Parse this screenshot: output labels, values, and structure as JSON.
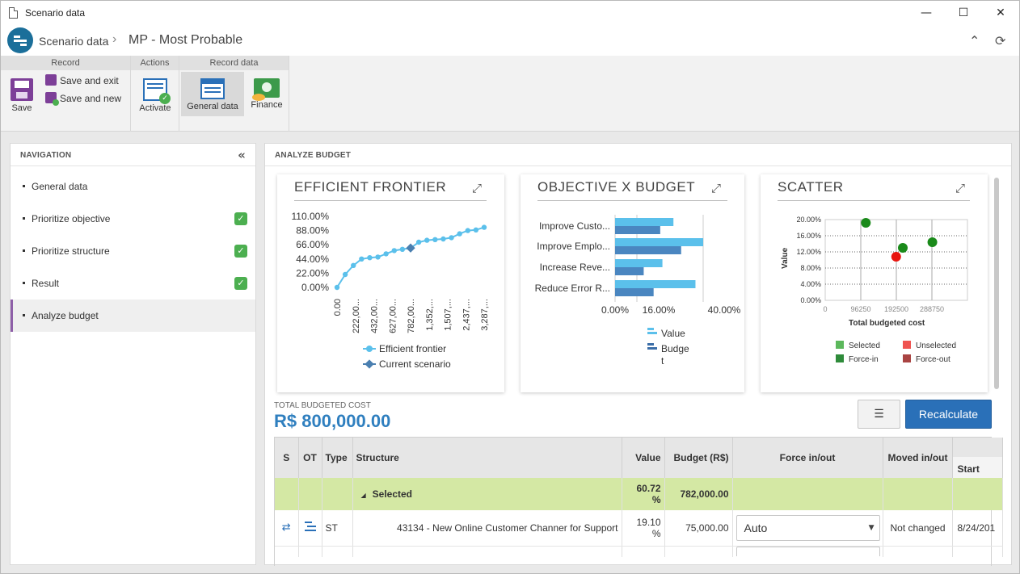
{
  "window": {
    "title": "Scenario data",
    "controls": [
      "—",
      "☐",
      "✕"
    ]
  },
  "header": {
    "breadcrumb_root": "Scenario data",
    "breadcrumb_sep": "›",
    "breadcrumb_current": "MP - Most Probable"
  },
  "ribbon": {
    "groups": {
      "record": "Record",
      "actions": "Actions",
      "record_data": "Record data"
    },
    "save": "Save",
    "save_and_exit": "Save and exit",
    "save_and_new": "Save and new",
    "activate": "Activate",
    "general_data": "General data",
    "finance": "Finance"
  },
  "navigation": {
    "title": "NAVIGATION",
    "items": [
      {
        "label": "General data",
        "checked": false
      },
      {
        "label": "Prioritize objective",
        "checked": true
      },
      {
        "label": "Prioritize structure",
        "checked": true
      },
      {
        "label": "Result",
        "checked": true
      },
      {
        "label": "Analyze budget",
        "checked": false,
        "active": true
      }
    ]
  },
  "main": {
    "title": "ANALYZE BUDGET",
    "total_label": "TOTAL BUDGETED COST",
    "total_value": "R$ 800,000.00",
    "recalculate": "Recalculate",
    "list_icon": "☰"
  },
  "colors": {
    "accent": "#2f7fbf",
    "frontier": "#5bc0eb",
    "current": "#4a7fb0",
    "selected_row": "#d4e8a4",
    "nav_active": "#8e5fa8",
    "check": "#4caf50"
  },
  "chart_data": [
    {
      "type": "line",
      "title": "EFFICIENT FRONTIER",
      "y_ticks": [
        "110.00%",
        "88.00%",
        "66.00%",
        "44.00%",
        "22.00%",
        "0.00%"
      ],
      "x_ticks": [
        "0.00",
        "222,00...",
        "432,00...",
        "627,00...",
        "782,00...",
        "1,352,...",
        "1,507,...",
        "2,437,...",
        "3,287,..."
      ],
      "ylim": [
        0,
        110
      ],
      "series": [
        {
          "name": "Efficient frontier",
          "values": [
            0,
            20,
            34,
            44,
            46,
            47,
            52,
            57,
            59,
            61,
            70,
            73,
            74,
            75,
            77,
            83,
            88,
            89,
            93
          ]
        },
        {
          "name": "Current scenario",
          "index": 9,
          "value": 61
        }
      ],
      "legend": [
        "Efficient frontier",
        "Current scenario"
      ]
    },
    {
      "type": "bar",
      "title": "OBJECTIVE X BUDGET",
      "categories": [
        "Improve Custo...",
        "Improve Emplo...",
        "Increase Reve...",
        "Reduce Error R..."
      ],
      "x_ticks": [
        "0.00%",
        "16.00%",
        "40.00%"
      ],
      "xlim": [
        0,
        40
      ],
      "series": [
        {
          "name": "Value",
          "values": [
            26.5,
            40,
            21.5,
            36.5
          ]
        },
        {
          "name": "Budget",
          "values": [
            20.5,
            30,
            13,
            17.5
          ]
        }
      ],
      "legend": [
        "Value",
        "Budge t"
      ]
    },
    {
      "type": "scatter",
      "title": "SCATTER",
      "xlabel": "Total budgeted cost",
      "ylabel": "Value",
      "y_ticks": [
        "20.00%",
        "16.00%",
        "12.00%",
        "8.00%",
        "4.00%",
        "0.00%"
      ],
      "x_ticks": [
        "0",
        "96250",
        "192500",
        "288750"
      ],
      "xlim": [
        0,
        385000
      ],
      "ylim": [
        0,
        20
      ],
      "points": [
        {
          "x": 110000,
          "y": 19.2,
          "status": "Force-in"
        },
        {
          "x": 290000,
          "y": 14.4,
          "status": "Force-in"
        },
        {
          "x": 210000,
          "y": 13.0,
          "status": "Force-in"
        },
        {
          "x": 192000,
          "y": 10.8,
          "status": "Unselected"
        }
      ],
      "legend": [
        {
          "label": "Selected",
          "color": "#5cb85c"
        },
        {
          "label": "Unselected",
          "color": "#ef5350"
        },
        {
          "label": "Force-in",
          "color": "#2e8b3a"
        },
        {
          "label": "Force-out",
          "color": "#a94442"
        }
      ]
    }
  ],
  "table": {
    "headers": [
      "S",
      "OT",
      "Type",
      "Structure",
      "Value",
      "Budget (R$)",
      "Force in/out",
      "Moved in/out",
      "Start"
    ],
    "group": {
      "label": "Selected",
      "value": "60.72 %",
      "budget": "782,000.00"
    },
    "rows": [
      {
        "type": "ST",
        "structure": "43134 - New Online Customer Channer for Support",
        "value": "19.10 %",
        "budget": "75,000.00",
        "force": "Auto",
        "moved": "Not changed",
        "start": "8/24/201"
      }
    ]
  }
}
